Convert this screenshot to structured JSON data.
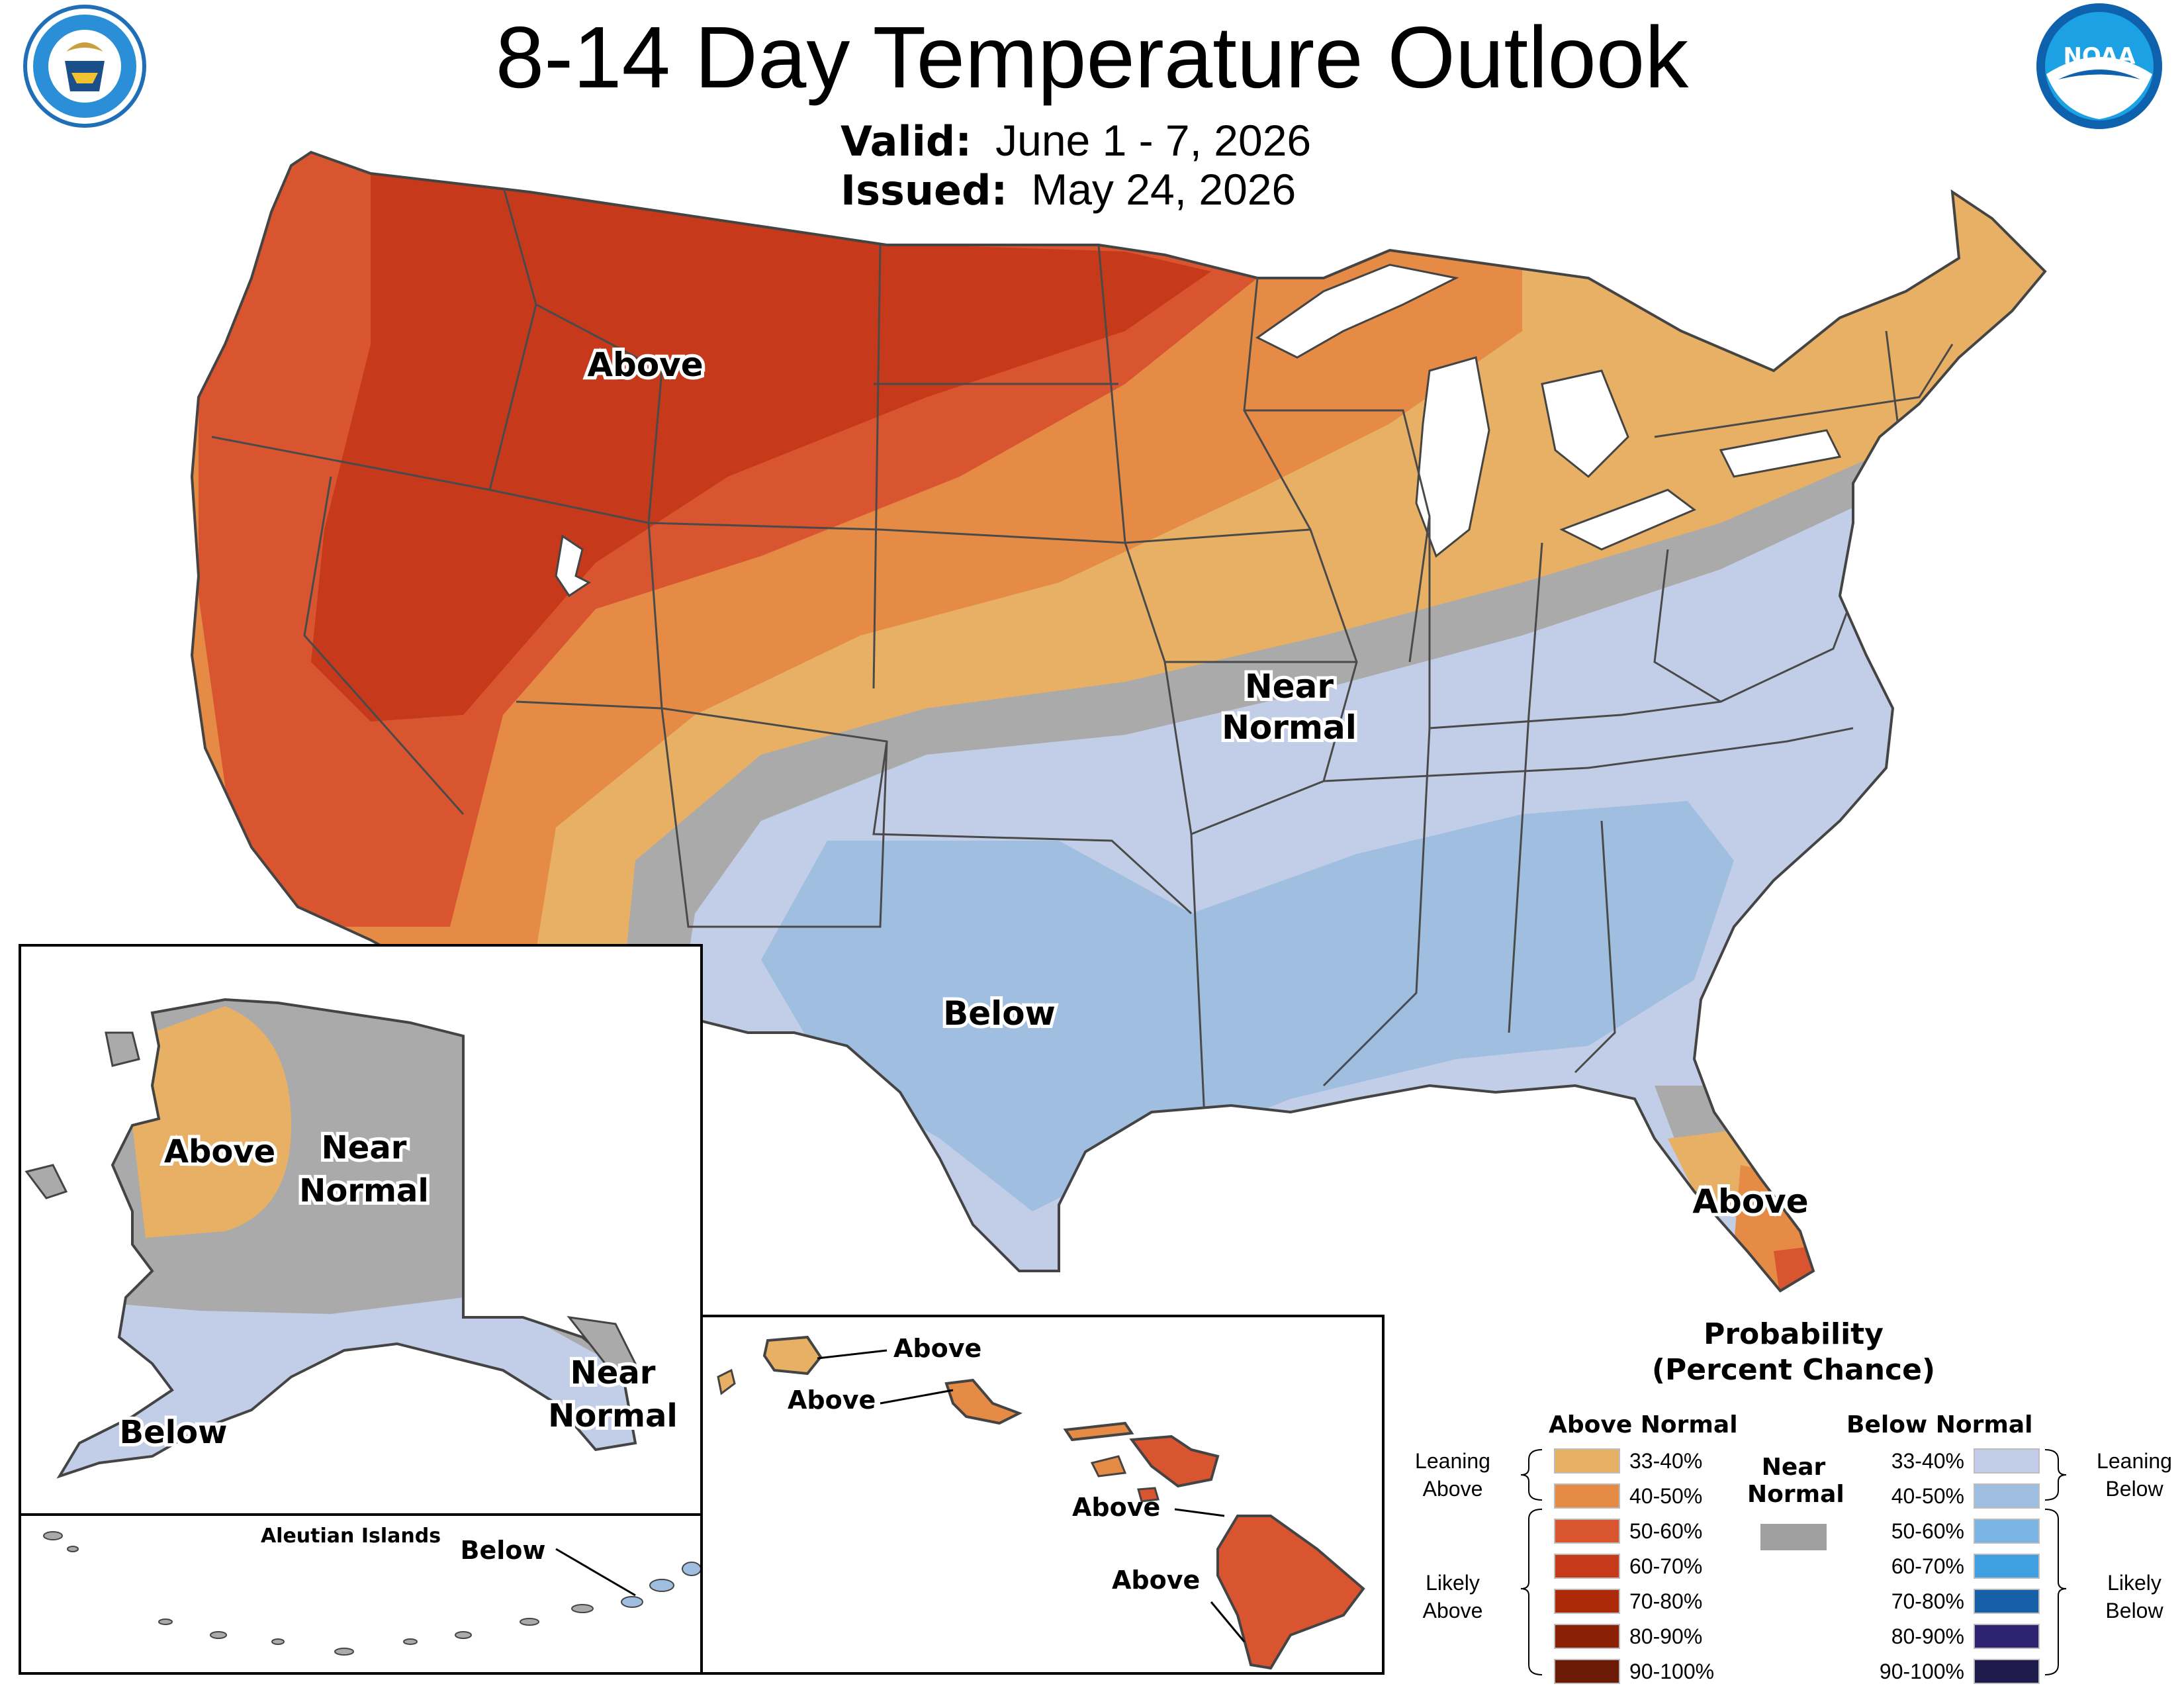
{
  "title": "8-14 Day Temperature Outlook",
  "valid_label": "Valid:",
  "valid_value": "June 1 - 7, 2026",
  "issued_label": "Issued:",
  "issued_value": "May 24, 2026",
  "logos": {
    "left": "Department of Commerce seal",
    "right": "NOAA logo"
  },
  "map_labels": {
    "conus_above": "Above",
    "conus_near_1": "Near",
    "conus_near_2": "Normal",
    "conus_below": "Below",
    "florida_above": "Above",
    "ak_above": "Above",
    "ak_near_1": "Near",
    "ak_near_2": "Normal",
    "ak_below": "Below",
    "ak_se_near_1": "Near",
    "ak_se_near_2": "Normal",
    "aleutian_title": "Aleutian Islands",
    "aleutian_below": "Below",
    "hi_kauai": "Above",
    "hi_oahu": "Above",
    "hi_maui": "Above",
    "hi_big_island": "Above"
  },
  "legend": {
    "title_1": "Probability",
    "title_2": "(Percent Chance)",
    "above_head": "Above Normal",
    "below_head": "Below Normal",
    "near_1": "Near",
    "near_2": "Normal",
    "near_color": "#a0a0a0",
    "leaning_above_1": "Leaning",
    "leaning_above_2": "Above",
    "likely_above_1": "Likely",
    "likely_above_2": "Above",
    "leaning_below_1": "Leaning",
    "leaning_below_2": "Below",
    "likely_below_1": "Likely",
    "likely_below_2": "Below",
    "above": [
      {
        "label": "33-40%",
        "color": "#e8b064"
      },
      {
        "label": "40-50%",
        "color": "#e58b45"
      },
      {
        "label": "50-60%",
        "color": "#d95530"
      },
      {
        "label": "60-70%",
        "color": "#c6391a"
      },
      {
        "label": "70-80%",
        "color": "#ad2a08"
      },
      {
        "label": "80-90%",
        "color": "#8a2106"
      },
      {
        "label": "90-100%",
        "color": "#6b1a05"
      }
    ],
    "below": [
      {
        "label": "33-40%",
        "color": "#c2cde7"
      },
      {
        "label": "40-50%",
        "color": "#a0bfe0"
      },
      {
        "label": "50-60%",
        "color": "#79b4e5"
      },
      {
        "label": "60-70%",
        "color": "#3f9fe0"
      },
      {
        "label": "70-80%",
        "color": "#1760a8"
      },
      {
        "label": "80-90%",
        "color": "#2e2370"
      },
      {
        "label": "90-100%",
        "color": "#1f1a4c"
      }
    ]
  }
}
